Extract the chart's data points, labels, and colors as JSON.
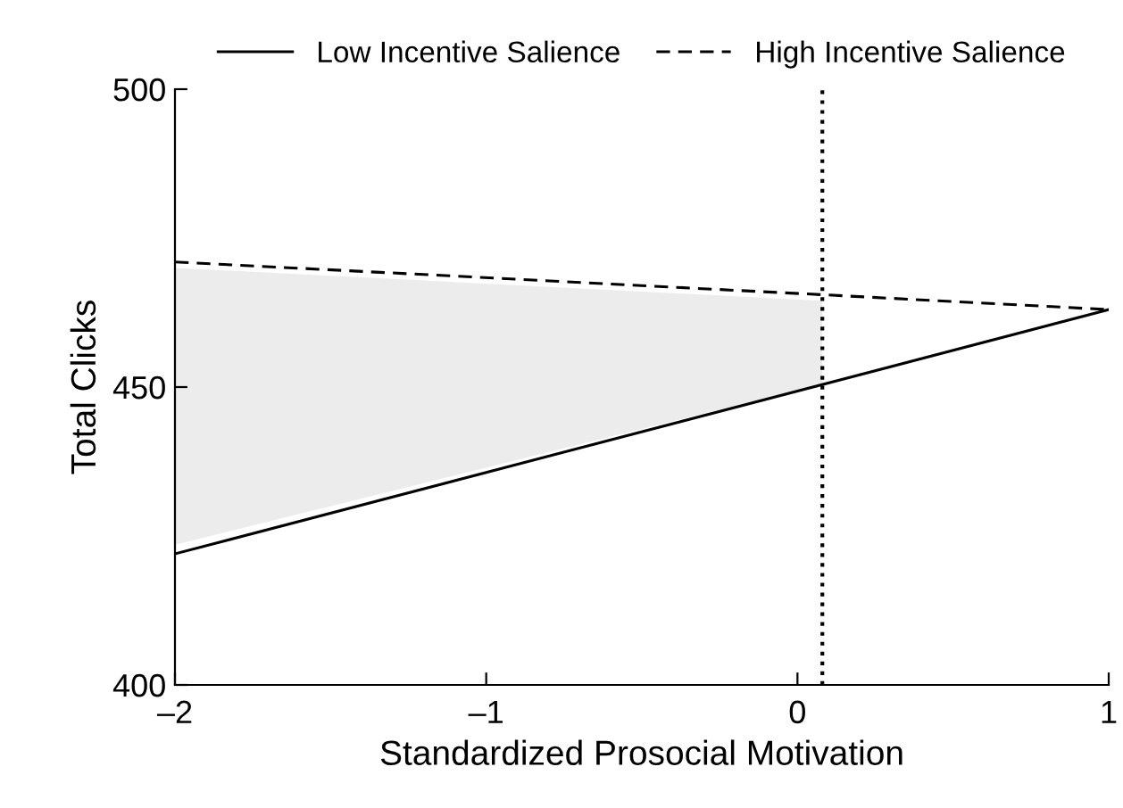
{
  "chart_data": {
    "type": "line",
    "xlabel": "Standardized Prosocial Motivation",
    "ylabel": "Total Clicks",
    "xlim": [
      -2,
      1
    ],
    "ylim": [
      400,
      500
    ],
    "xticks": [
      {
        "value": -2,
        "label": "–2"
      },
      {
        "value": -1,
        "label": "–1"
      },
      0,
      1
    ],
    "yticks": [
      400,
      450,
      500
    ],
    "series": [
      {
        "name": "Low Incentive Salience",
        "color": "#000000",
        "line_style": "solid",
        "x": [
          -2,
          1
        ],
        "values": [
          422,
          463
        ]
      },
      {
        "name": "High Incentive Salience",
        "color": "#000000",
        "line_style": "dashed",
        "x": [
          -2,
          0.08,
          1
        ],
        "values": [
          471,
          465.5,
          463
        ],
        "lower": [
          423.5,
          450.5,
          null
        ],
        "upper": [
          470,
          464.5,
          null
        ]
      }
    ],
    "ref_lines": [
      {
        "axis": "x",
        "value": 0.08,
        "color": "#000000",
        "line_style": "dotted"
      }
    ],
    "legend": "top",
    "grid": false,
    "marker": "none"
  }
}
